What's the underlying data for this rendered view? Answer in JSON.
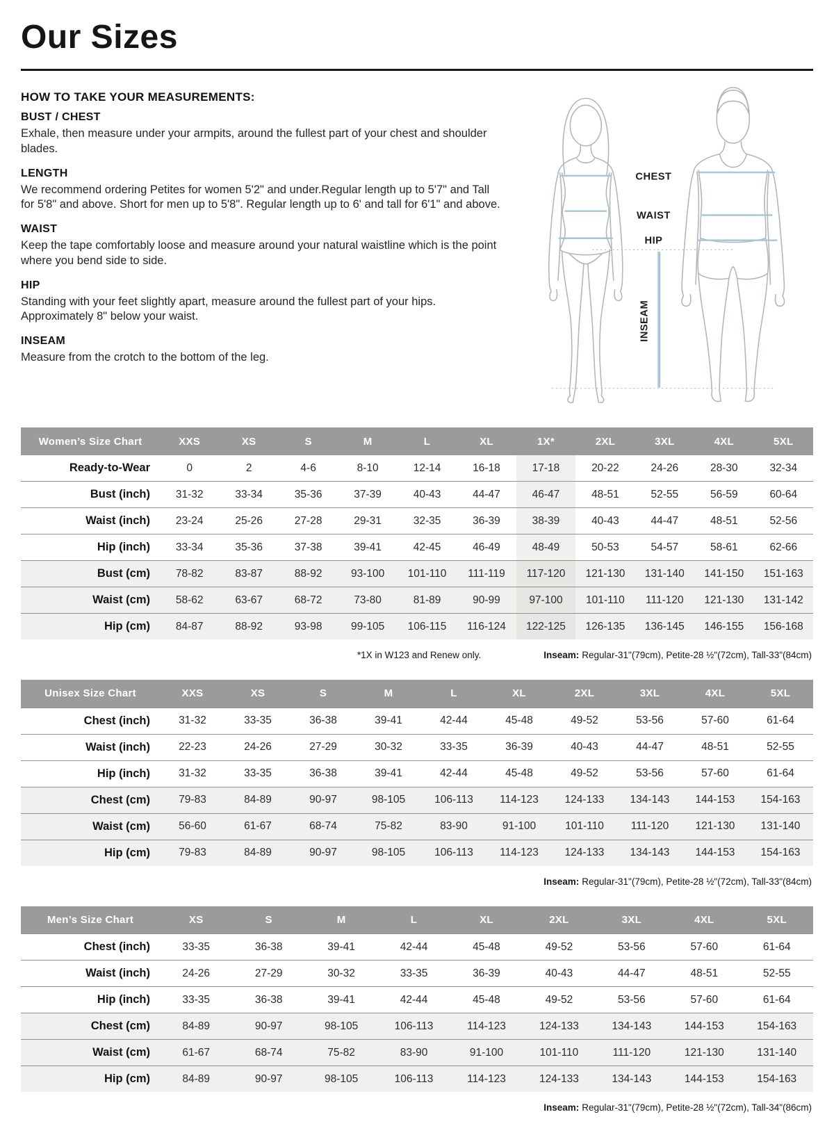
{
  "page": {
    "title": "Our Sizes"
  },
  "instructions": {
    "heading": "HOW TO TAKE YOUR MEASUREMENTS:",
    "sections": [
      {
        "heading": "BUST / CHEST",
        "body": "Exhale, then measure under your armpits, around the fullest part of your chest and shoulder blades."
      },
      {
        "heading": "LENGTH",
        "body": "We recommend ordering Petites for women 5'2\" and under.Regular length up to 5'7\" and Tall for 5'8\" and above. Short for men up to 5'8\". Regular length up to 6' and tall for 6'1\" and above."
      },
      {
        "heading": "WAIST",
        "body": "Keep the tape comfortably loose and measure around your natural waistline which is the point where you bend side to side."
      },
      {
        "heading": "HIP",
        "body": "Standing with your feet slightly apart, measure around the fullest part of your hips. Approximately 8\" below your waist."
      },
      {
        "heading": "INSEAM",
        "body": "Measure from the crotch to the bottom of the leg."
      }
    ]
  },
  "figure": {
    "labels": {
      "chest": "CHEST",
      "waist": "WAIST",
      "hip": "HIP",
      "inseam": "INSEAM"
    }
  },
  "tables": [
    {
      "title": "Women’s Size Chart",
      "columns": [
        "XXS",
        "XS",
        "S",
        "M",
        "L",
        "XL",
        "1X*",
        "2XL",
        "3XL",
        "4XL",
        "5XL"
      ],
      "highlight_col": 6,
      "rows": [
        {
          "label": "Ready-to-Wear",
          "values": [
            "0",
            "2",
            "4-6",
            "8-10",
            "12-14",
            "16-18",
            "17-18",
            "20-22",
            "24-26",
            "28-30",
            "32-34"
          ]
        },
        {
          "label": "Bust (inch)",
          "values": [
            "31-32",
            "33-34",
            "35-36",
            "37-39",
            "40-43",
            "44-47",
            "46-47",
            "48-51",
            "52-55",
            "56-59",
            "60-64"
          ]
        },
        {
          "label": "Waist (inch)",
          "values": [
            "23-24",
            "25-26",
            "27-28",
            "29-31",
            "32-35",
            "36-39",
            "38-39",
            "40-43",
            "44-47",
            "48-51",
            "52-56"
          ]
        },
        {
          "label": "Hip (inch)",
          "values": [
            "33-34",
            "35-36",
            "37-38",
            "39-41",
            "42-45",
            "46-49",
            "48-49",
            "50-53",
            "54-57",
            "58-61",
            "62-66"
          ]
        },
        {
          "label": "Bust (cm)",
          "values": [
            "78-82",
            "83-87",
            "88-92",
            "93-100",
            "101-110",
            "111-119",
            "117-120",
            "121-130",
            "131-140",
            "141-150",
            "151-163"
          ]
        },
        {
          "label": "Waist (cm)",
          "values": [
            "58-62",
            "63-67",
            "68-72",
            "73-80",
            "81-89",
            "90-99",
            "97-100",
            "101-110",
            "111-120",
            "121-130",
            "131-142"
          ]
        },
        {
          "label": "Hip (cm)",
          "values": [
            "84-87",
            "88-92",
            "93-98",
            "99-105",
            "106-115",
            "116-124",
            "122-125",
            "126-135",
            "136-145",
            "146-155",
            "156-168"
          ]
        }
      ],
      "footnote_star": "*1X in W123 and Renew only.",
      "inseam_label": "Inseam:",
      "inseam_note": "Regular-31\"(79cm), Petite-28 ½\"(72cm), Tall-33\"(84cm)"
    },
    {
      "title": "Unisex Size Chart",
      "columns": [
        "XXS",
        "XS",
        "S",
        "M",
        "L",
        "XL",
        "2XL",
        "3XL",
        "4XL",
        "5XL"
      ],
      "rows": [
        {
          "label": "Chest (inch)",
          "values": [
            "31-32",
            "33-35",
            "36-38",
            "39-41",
            "42-44",
            "45-48",
            "49-52",
            "53-56",
            "57-60",
            "61-64"
          ]
        },
        {
          "label": "Waist (inch)",
          "values": [
            "22-23",
            "24-26",
            "27-29",
            "30-32",
            "33-35",
            "36-39",
            "40-43",
            "44-47",
            "48-51",
            "52-55"
          ]
        },
        {
          "label": "Hip (inch)",
          "values": [
            "31-32",
            "33-35",
            "36-38",
            "39-41",
            "42-44",
            "45-48",
            "49-52",
            "53-56",
            "57-60",
            "61-64"
          ]
        },
        {
          "label": "Chest (cm)",
          "values": [
            "79-83",
            "84-89",
            "90-97",
            "98-105",
            "106-113",
            "114-123",
            "124-133",
            "134-143",
            "144-153",
            "154-163"
          ]
        },
        {
          "label": "Waist (cm)",
          "values": [
            "56-60",
            "61-67",
            "68-74",
            "75-82",
            "83-90",
            "91-100",
            "101-110",
            "111-120",
            "121-130",
            "131-140"
          ]
        },
        {
          "label": "Hip (cm)",
          "values": [
            "79-83",
            "84-89",
            "90-97",
            "98-105",
            "106-113",
            "114-123",
            "124-133",
            "134-143",
            "144-153",
            "154-163"
          ]
        }
      ],
      "inseam_label": "Inseam:",
      "inseam_note": "Regular-31\"(79cm), Petite-28 ½\"(72cm), Tall-33\"(84cm)"
    },
    {
      "title": "Men’s Size Chart",
      "columns": [
        "XS",
        "S",
        "M",
        "L",
        "XL",
        "2XL",
        "3XL",
        "4XL",
        "5XL"
      ],
      "rows": [
        {
          "label": "Chest (inch)",
          "values": [
            "33-35",
            "36-38",
            "39-41",
            "42-44",
            "45-48",
            "49-52",
            "53-56",
            "57-60",
            "61-64"
          ]
        },
        {
          "label": "Waist (inch)",
          "values": [
            "24-26",
            "27-29",
            "30-32",
            "33-35",
            "36-39",
            "40-43",
            "44-47",
            "48-51",
            "52-55"
          ]
        },
        {
          "label": "Hip (inch)",
          "values": [
            "33-35",
            "36-38",
            "39-41",
            "42-44",
            "45-48",
            "49-52",
            "53-56",
            "57-60",
            "61-64"
          ]
        },
        {
          "label": "Chest (cm)",
          "values": [
            "84-89",
            "90-97",
            "98-105",
            "106-113",
            "114-123",
            "124-133",
            "134-143",
            "144-153",
            "154-163"
          ]
        },
        {
          "label": "Waist (cm)",
          "values": [
            "61-67",
            "68-74",
            "75-82",
            "83-90",
            "91-100",
            "101-110",
            "111-120",
            "121-130",
            "131-140"
          ]
        },
        {
          "label": "Hip (cm)",
          "values": [
            "84-89",
            "90-97",
            "98-105",
            "106-113",
            "114-123",
            "124-133",
            "134-143",
            "144-153",
            "154-163"
          ]
        }
      ],
      "inseam_label": "Inseam:",
      "inseam_note": "Regular-31\"(79cm), Petite-28 ½\"(72cm), Tall-34\"(86cm)"
    }
  ]
}
